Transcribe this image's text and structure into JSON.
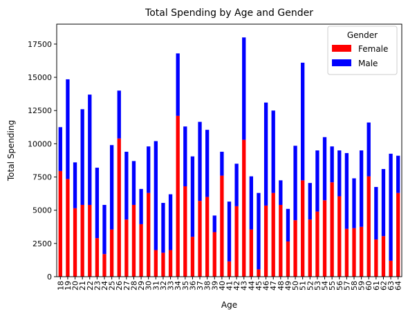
{
  "chart_data": {
    "type": "bar",
    "stacked": true,
    "title": "Total Spending by Age and Gender",
    "xlabel": "Age",
    "ylabel": "Total Spending",
    "ylim": [
      0,
      19000
    ],
    "yticks": [
      0,
      2500,
      5000,
      7500,
      10000,
      12500,
      15000,
      17500
    ],
    "grid": false,
    "legend": {
      "title": "Gender",
      "placement": "top-right"
    },
    "categories": [
      "18",
      "19",
      "20",
      "21",
      "22",
      "23",
      "24",
      "25",
      "26",
      "27",
      "28",
      "29",
      "30",
      "31",
      "32",
      "33",
      "34",
      "35",
      "36",
      "37",
      "38",
      "39",
      "40",
      "41",
      "42",
      "43",
      "44",
      "45",
      "46",
      "47",
      "48",
      "49",
      "50",
      "51",
      "52",
      "53",
      "54",
      "55",
      "56",
      "57",
      "58",
      "59",
      "60",
      "61",
      "62",
      "63",
      "64"
    ],
    "series": [
      {
        "name": "Female",
        "color": "#ff0000",
        "values": [
          7950,
          7350,
          5150,
          5400,
          5400,
          2900,
          1700,
          3550,
          10400,
          4300,
          5400,
          3950,
          6300,
          2000,
          1800,
          2000,
          12100,
          6800,
          3000,
          5700,
          6000,
          3350,
          7600,
          1150,
          5300,
          10300,
          3550,
          550,
          5350,
          6300,
          5400,
          2650,
          4250,
          7250,
          4300,
          4900,
          5750,
          7100,
          6050,
          3600,
          3650,
          3750,
          7550,
          2800,
          3050,
          1200,
          6300
        ]
      },
      {
        "name": "Male",
        "color": "#0000ff",
        "values": [
          3300,
          7500,
          3450,
          7200,
          8300,
          5300,
          3700,
          6350,
          3600,
          5100,
          3300,
          2650,
          3500,
          8200,
          3750,
          4200,
          4700,
          4500,
          6050,
          5950,
          5050,
          1250,
          1800,
          4500,
          3200,
          7700,
          4000,
          5750,
          7750,
          6200,
          1850,
          2450,
          5600,
          8850,
          2750,
          4600,
          4750,
          2700,
          3450,
          5700,
          3750,
          5750,
          4050,
          3950,
          5050,
          8050,
          2800
        ]
      }
    ]
  }
}
